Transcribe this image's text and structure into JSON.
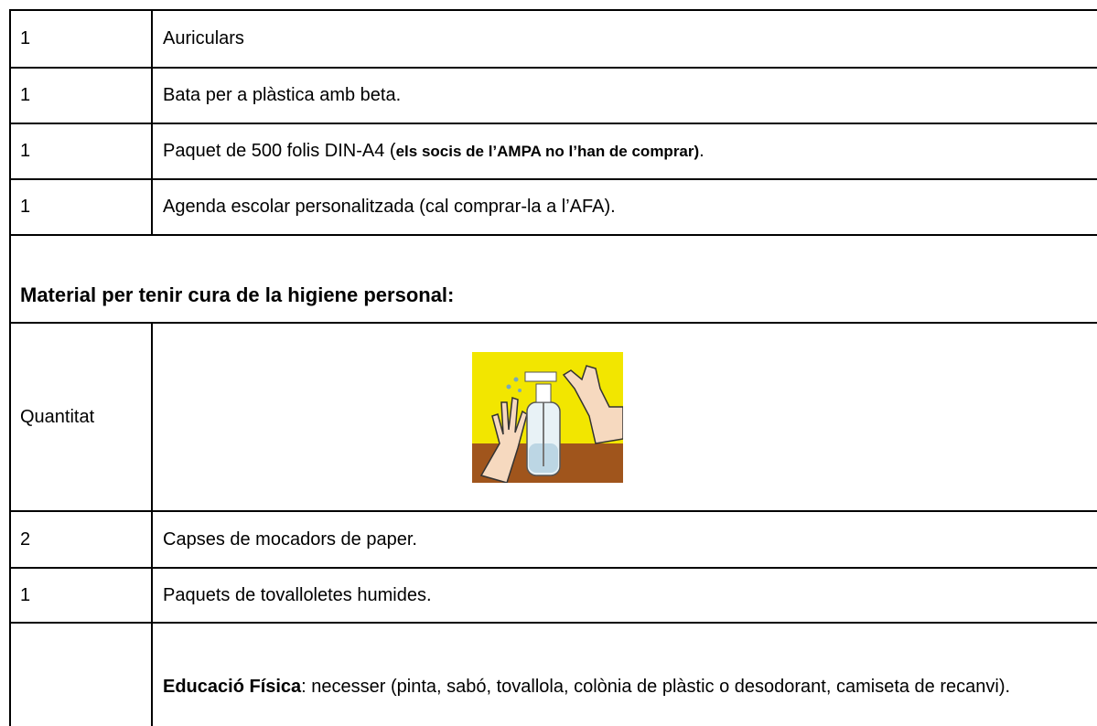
{
  "table": {
    "rows": [
      {
        "qty": "1",
        "desc": [
          {
            "text": "Auriculars",
            "bold": false
          }
        ]
      },
      {
        "qty": "1",
        "desc": [
          {
            "text": "Bata per a plàstica amb beta.",
            "bold": false
          }
        ]
      },
      {
        "qty": "1",
        "desc": [
          {
            "text": "Paquet de 500 folis DIN-A4 (",
            "bold": false
          },
          {
            "text": "els socis de l’AMPA no l’han de comprar)",
            "bold": true
          },
          {
            "text": ".",
            "bold": false
          }
        ]
      },
      {
        "qty": "1",
        "desc": [
          {
            "text": "Agenda escolar personalitzada (cal comprar-la a l’AFA).",
            "bold": false
          }
        ]
      }
    ]
  },
  "section": {
    "title": "Material per tenir cura de la higiene personal:",
    "header_qty": "Quantitat",
    "rows": [
      {
        "qty": "2",
        "desc": [
          {
            "text": "Capses de mocadors de paper.",
            "bold": false
          }
        ]
      },
      {
        "qty": "1",
        "desc": [
          {
            "text": "Paquets de tovalloletes humides.",
            "bold": false
          }
        ]
      },
      {
        "desc": [
          {
            "text": "Educació Física",
            "bold": true
          },
          {
            "text": ": necesser (pinta, sabó, tovallola, colònia de plàstic o desodorant, camiseta de recanvi).",
            "bold": false
          }
        ]
      }
    ]
  }
}
